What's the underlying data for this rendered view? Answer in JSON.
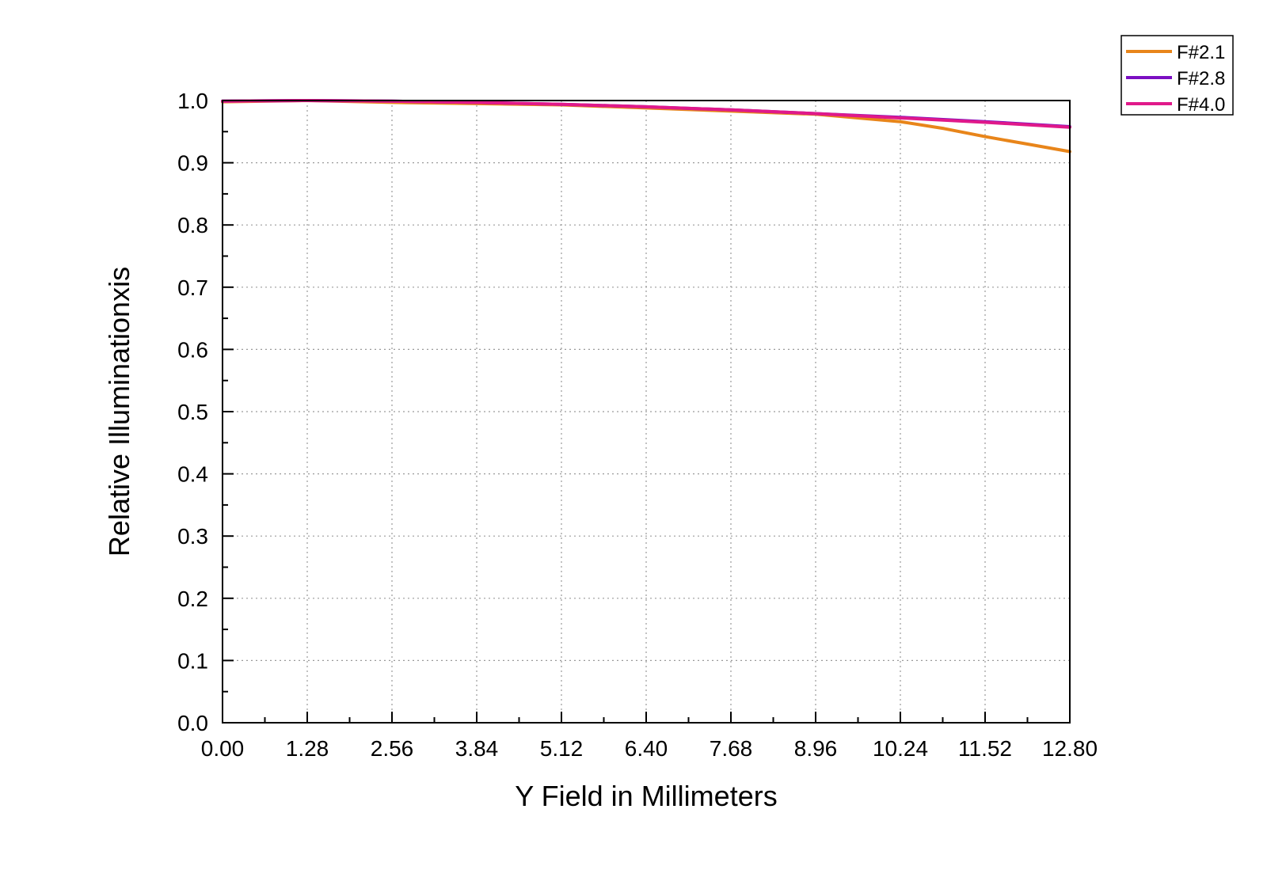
{
  "chart_data": {
    "type": "line",
    "title": "",
    "xlabel": "Y Field in Millimeters",
    "ylabel": "Relative Illuminationxis",
    "xlim": [
      0,
      12.8
    ],
    "ylim": [
      0,
      1.0
    ],
    "x_ticks": [
      "0.00",
      "1.28",
      "2.56",
      "3.84",
      "5.12",
      "6.40",
      "7.68",
      "8.96",
      "10.24",
      "11.52",
      "12.80"
    ],
    "y_ticks": [
      "0.0",
      "0.1",
      "0.2",
      "0.3",
      "0.4",
      "0.5",
      "0.6",
      "0.7",
      "0.8",
      "0.9",
      "1.0"
    ],
    "grid": true,
    "legend_position": "top-right",
    "series": [
      {
        "name": "F#2.1",
        "color": "#E8851A",
        "x": [
          0,
          1.28,
          2.56,
          3.84,
          5.12,
          6.4,
          7.68,
          8.96,
          9.6,
          10.24,
          10.9,
          11.52,
          12.16,
          12.8
        ],
        "y": [
          0.998,
          1.0,
          0.997,
          0.995,
          0.993,
          0.988,
          0.983,
          0.978,
          0.972,
          0.966,
          0.955,
          0.942,
          0.93,
          0.918
        ]
      },
      {
        "name": "F#2.8",
        "color": "#7B0FC2",
        "x": [
          0,
          1.28,
          2.56,
          3.84,
          5.12,
          6.4,
          7.68,
          8.96,
          10.24,
          11.52,
          12.8
        ],
        "y": [
          0.999,
          1.0,
          0.999,
          0.997,
          0.994,
          0.99,
          0.985,
          0.979,
          0.973,
          0.966,
          0.958
        ]
      },
      {
        "name": "F#4.0",
        "color": "#E0198A",
        "x": [
          0,
          1.28,
          2.56,
          3.84,
          5.12,
          6.4,
          7.68,
          8.96,
          10.24,
          11.52,
          12.8
        ],
        "y": [
          0.999,
          1.0,
          0.999,
          0.997,
          0.994,
          0.99,
          0.985,
          0.979,
          0.972,
          0.965,
          0.957
        ]
      }
    ]
  }
}
